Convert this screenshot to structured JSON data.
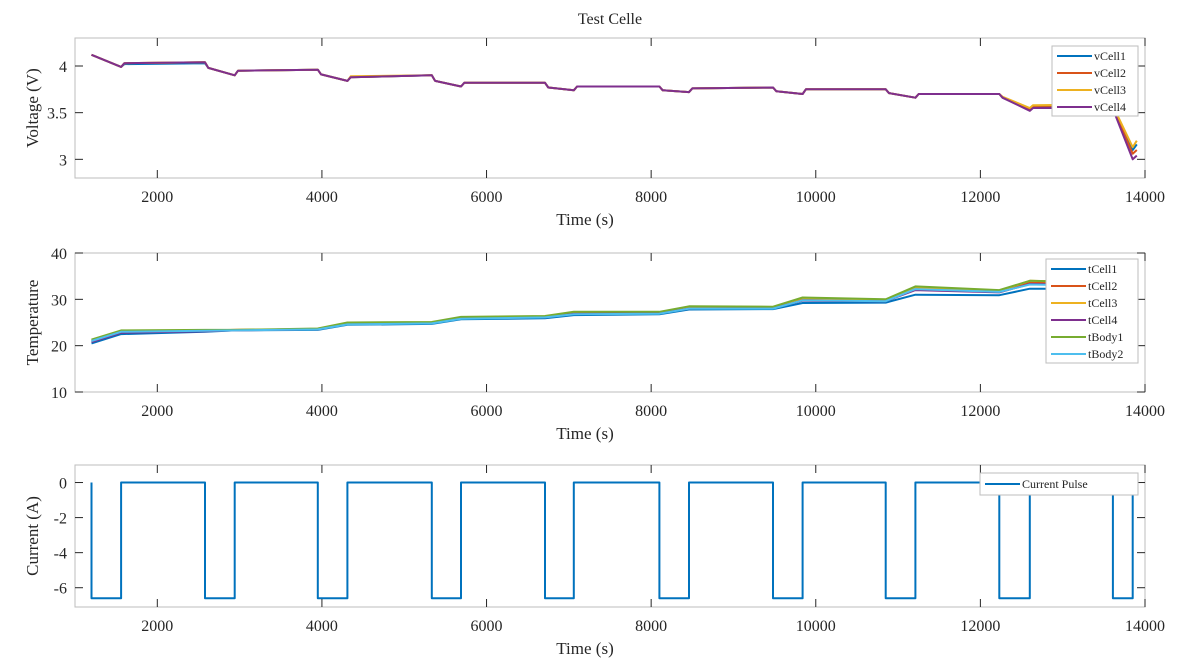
{
  "figure_title": "Test Celle",
  "colors": {
    "c1": "#0072BD",
    "c2": "#D95319",
    "c3": "#EDB120",
    "c4": "#7E2F8E",
    "c5": "#77AC30",
    "c6": "#4DBEEE",
    "axis": "#262626",
    "box": "#bdbdbd"
  },
  "chart_data": [
    {
      "type": "line",
      "title": "Test Celle",
      "xlabel": "Time (s)",
      "ylabel": "Voltage (V)",
      "xlim": [
        1000,
        14000
      ],
      "ylim": [
        2.8,
        4.3
      ],
      "xticks": [
        "2000",
        "4000",
        "6000",
        "8000",
        "10000",
        "12000",
        "14000"
      ],
      "xtick_values": [
        2000,
        4000,
        6000,
        8000,
        10000,
        12000,
        14000
      ],
      "yticks": [
        "3",
        "3.5",
        "4"
      ],
      "ytick_values": [
        3,
        3.5,
        4
      ],
      "legend": "top-right",
      "x": [
        1200,
        1560,
        1600,
        2580,
        2620,
        2940,
        2980,
        3950,
        3990,
        4310,
        4350,
        5335,
        5375,
        5690,
        5730,
        6710,
        6750,
        7060,
        7100,
        8100,
        8140,
        8460,
        8500,
        9480,
        9520,
        9840,
        9880,
        10850,
        10890,
        11210,
        11250,
        12230,
        12270,
        12600,
        12640,
        13610,
        13650,
        13850,
        13900
      ],
      "series": [
        {
          "name": "vCell1",
          "color": "#0072BD",
          "values": [
            4.12,
            3.99,
            4.02,
            4.03,
            3.98,
            3.9,
            3.95,
            3.96,
            3.91,
            3.84,
            3.88,
            3.9,
            3.84,
            3.78,
            3.82,
            3.82,
            3.77,
            3.74,
            3.78,
            3.78,
            3.74,
            3.72,
            3.76,
            3.77,
            3.73,
            3.7,
            3.75,
            3.75,
            3.71,
            3.66,
            3.7,
            3.7,
            3.66,
            3.53,
            3.56,
            3.57,
            3.48,
            3.1,
            3.16
          ]
        },
        {
          "name": "vCell2",
          "color": "#D95319",
          "values": [
            4.12,
            3.99,
            4.03,
            4.04,
            3.98,
            3.9,
            3.95,
            3.96,
            3.91,
            3.84,
            3.88,
            3.9,
            3.84,
            3.78,
            3.82,
            3.82,
            3.77,
            3.74,
            3.78,
            3.78,
            3.74,
            3.72,
            3.76,
            3.77,
            3.73,
            3.7,
            3.75,
            3.75,
            3.71,
            3.66,
            3.7,
            3.7,
            3.66,
            3.53,
            3.56,
            3.56,
            3.47,
            3.06,
            3.1
          ]
        },
        {
          "name": "vCell3",
          "color": "#EDB120",
          "values": [
            4.12,
            3.99,
            4.03,
            4.04,
            3.98,
            3.9,
            3.95,
            3.96,
            3.91,
            3.84,
            3.89,
            3.9,
            3.84,
            3.78,
            3.82,
            3.82,
            3.77,
            3.74,
            3.78,
            3.78,
            3.74,
            3.72,
            3.76,
            3.77,
            3.73,
            3.7,
            3.75,
            3.75,
            3.71,
            3.66,
            3.7,
            3.7,
            3.67,
            3.55,
            3.58,
            3.59,
            3.5,
            3.13,
            3.2
          ]
        },
        {
          "name": "vCell4",
          "color": "#7E2F8E",
          "values": [
            4.12,
            3.99,
            4.03,
            4.04,
            3.98,
            3.9,
            3.95,
            3.96,
            3.91,
            3.84,
            3.88,
            3.9,
            3.84,
            3.78,
            3.82,
            3.82,
            3.77,
            3.74,
            3.78,
            3.78,
            3.74,
            3.72,
            3.76,
            3.77,
            3.73,
            3.7,
            3.75,
            3.75,
            3.71,
            3.66,
            3.7,
            3.7,
            3.66,
            3.52,
            3.55,
            3.55,
            3.45,
            3.0,
            3.04
          ]
        }
      ]
    },
    {
      "type": "line",
      "xlabel": "Time (s)",
      "ylabel": "Temperature",
      "xlim": [
        1000,
        14000
      ],
      "ylim": [
        10,
        40
      ],
      "xticks": [
        "2000",
        "4000",
        "6000",
        "8000",
        "10000",
        "12000",
        "14000"
      ],
      "xtick_values": [
        2000,
        4000,
        6000,
        8000,
        10000,
        12000,
        14000
      ],
      "yticks": [
        "10",
        "20",
        "30",
        "40"
      ],
      "ytick_values": [
        10,
        20,
        30,
        40
      ],
      "legend": "top-right",
      "x": [
        1200,
        1560,
        2580,
        2940,
        3950,
        4310,
        5335,
        5690,
        6710,
        7060,
        8100,
        8460,
        9480,
        9840,
        10850,
        11210,
        12230,
        12600,
        13850
      ],
      "series": [
        {
          "name": "tCell1",
          "color": "#0072BD",
          "values": [
            20.5,
            22.5,
            23.0,
            23.3,
            23.4,
            24.5,
            24.7,
            25.7,
            25.9,
            26.6,
            26.8,
            27.8,
            27.9,
            29.2,
            29.3,
            31.0,
            30.9,
            32.3,
            32.3
          ]
        },
        {
          "name": "tCell2",
          "color": "#D95319",
          "values": [
            21.0,
            23.0,
            23.2,
            23.4,
            23.6,
            24.8,
            25.0,
            26.0,
            26.3,
            27.0,
            27.1,
            28.2,
            28.2,
            30.0,
            29.8,
            32.3,
            31.7,
            33.6,
            33.2
          ]
        },
        {
          "name": "tCell3",
          "color": "#EDB120",
          "values": [
            21.2,
            23.2,
            23.3,
            23.4,
            23.6,
            24.9,
            25.0,
            26.1,
            26.3,
            27.1,
            27.2,
            28.4,
            28.3,
            30.3,
            29.9,
            32.6,
            31.8,
            34.0,
            33.4
          ]
        },
        {
          "name": "tCell4",
          "color": "#7E2F8E",
          "values": [
            20.8,
            22.8,
            23.1,
            23.3,
            23.5,
            24.7,
            24.9,
            25.9,
            26.1,
            26.9,
            27.0,
            28.0,
            28.1,
            29.7,
            29.6,
            32.0,
            31.5,
            33.3,
            33.0
          ]
        },
        {
          "name": "tBody1",
          "color": "#77AC30",
          "values": [
            21.3,
            23.3,
            23.4,
            23.4,
            23.7,
            25.0,
            25.1,
            26.2,
            26.4,
            27.3,
            27.3,
            28.5,
            28.4,
            30.4,
            30.0,
            32.8,
            32.0,
            34.0,
            33.5
          ]
        },
        {
          "name": "tBody2",
          "color": "#4DBEEE",
          "values": [
            21.0,
            23.0,
            23.2,
            23.3,
            23.5,
            24.6,
            24.8,
            25.8,
            26.1,
            26.8,
            26.9,
            28.0,
            28.0,
            29.8,
            29.6,
            32.2,
            31.6,
            33.2,
            32.8
          ]
        }
      ]
    },
    {
      "type": "line",
      "xlabel": "Time (s)",
      "ylabel": "Current (A)",
      "xlim": [
        1000,
        14000
      ],
      "ylim": [
        -7.1,
        1
      ],
      "xticks": [
        "2000",
        "4000",
        "6000",
        "8000",
        "10000",
        "12000",
        "14000"
      ],
      "xtick_values": [
        2000,
        4000,
        6000,
        8000,
        10000,
        12000,
        14000
      ],
      "yticks": [
        "-6",
        "-4",
        "-2",
        "0"
      ],
      "ytick_values": [
        -6,
        -4,
        -2,
        0
      ],
      "legend": "top-right",
      "x": [
        1200,
        1200,
        1560,
        1560,
        2580,
        2580,
        2940,
        2940,
        3950,
        3950,
        4310,
        4310,
        5335,
        5335,
        5690,
        5690,
        6710,
        6710,
        7060,
        7060,
        8100,
        8100,
        8460,
        8460,
        9480,
        9480,
        9840,
        9840,
        10850,
        10850,
        11210,
        11210,
        12230,
        12230,
        12600,
        12600,
        13610,
        13610,
        13850,
        13850
      ],
      "series": [
        {
          "name": "Current Pulse",
          "color": "#0072BD",
          "values": [
            0,
            -6.6,
            -6.6,
            0,
            0,
            -6.6,
            -6.6,
            0,
            0,
            -6.6,
            -6.6,
            0,
            0,
            -6.6,
            -6.6,
            0,
            0,
            -6.6,
            -6.6,
            0,
            0,
            -6.6,
            -6.6,
            0,
            0,
            -6.6,
            -6.6,
            0,
            0,
            -6.6,
            -6.6,
            0,
            0,
            -6.6,
            -6.6,
            0,
            0,
            -6.6,
            -6.6,
            0
          ]
        }
      ]
    }
  ]
}
